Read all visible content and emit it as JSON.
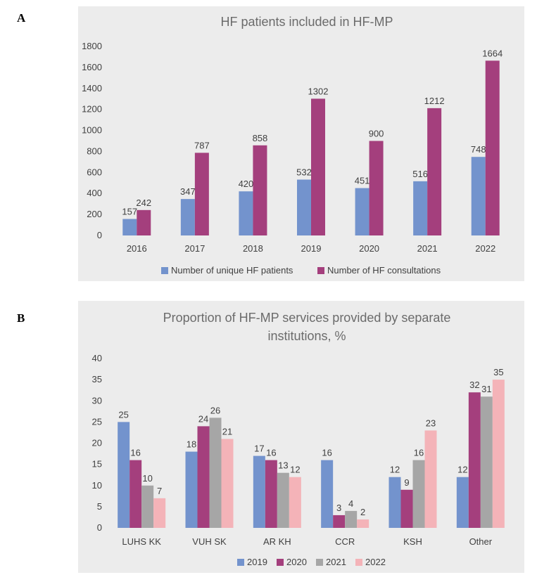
{
  "panels": {
    "a_letter": "A",
    "b_letter": "B"
  },
  "chart_data": [
    {
      "type": "bar",
      "title": "HF patients included in HF-MP",
      "title_lines": [
        "HF patients included in HF-MP"
      ],
      "categories": [
        "2016",
        "2017",
        "2018",
        "2019",
        "2020",
        "2021",
        "2022"
      ],
      "series": [
        {
          "name": "Number of unique HF patients",
          "color": "#7393cd",
          "values": [
            157,
            347,
            420,
            532,
            451,
            516,
            748
          ]
        },
        {
          "name": "Number of HF consultations",
          "color": "#a43f7d",
          "values": [
            242,
            787,
            858,
            1302,
            900,
            1212,
            1664
          ]
        }
      ],
      "ylim": [
        0,
        1800
      ],
      "yticks": [
        0,
        200,
        400,
        600,
        800,
        1000,
        1200,
        1400,
        1600,
        1800
      ],
      "grid": false,
      "legend": "bottom"
    },
    {
      "type": "bar",
      "title": "Proportion of HF-MP services provided by separate institutions, %",
      "title_lines": [
        "Proportion of HF-MP services provided by separate",
        "institutions, %"
      ],
      "categories": [
        "LUHS KK",
        "VUH SK",
        "AR KH",
        "CCR",
        "KSH",
        "Other"
      ],
      "series": [
        {
          "name": "2019",
          "color": "#7393cd",
          "values": [
            25,
            18,
            17,
            16,
            12,
            12
          ]
        },
        {
          "name": "2020",
          "color": "#a43f7d",
          "values": [
            16,
            24,
            16,
            3,
            9,
            32
          ]
        },
        {
          "name": "2021",
          "color": "#a6a6a6",
          "values": [
            10,
            26,
            13,
            4,
            16,
            31
          ]
        },
        {
          "name": "2022",
          "color": "#f4b3b8",
          "values": [
            7,
            21,
            12,
            2,
            23,
            35
          ]
        }
      ],
      "ylim": [
        0,
        40
      ],
      "yticks": [
        0,
        5,
        10,
        15,
        20,
        25,
        30,
        35,
        40
      ],
      "grid": false,
      "legend": "bottom"
    }
  ]
}
